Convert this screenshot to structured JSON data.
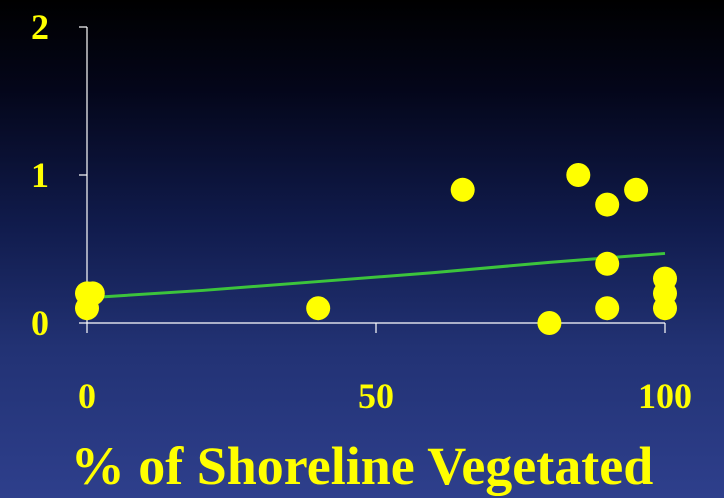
{
  "chart_data": {
    "type": "scatter",
    "title": "",
    "xlabel": "% of Shoreline Vegetated",
    "ylabel": "",
    "xlim": [
      0,
      100
    ],
    "ylim": [
      0,
      2
    ],
    "x_ticks": [
      "0",
      "50",
      "100"
    ],
    "y_ticks": [
      "0",
      "1",
      "2"
    ],
    "points": [
      {
        "x": 0,
        "y": 0.1
      },
      {
        "x": 0,
        "y": 0.2
      },
      {
        "x": 1,
        "y": 0.2
      },
      {
        "x": 40,
        "y": 0.1
      },
      {
        "x": 65,
        "y": 0.9
      },
      {
        "x": 80,
        "y": 0.0
      },
      {
        "x": 85,
        "y": 1.0
      },
      {
        "x": 90,
        "y": 0.8
      },
      {
        "x": 90,
        "y": 0.4
      },
      {
        "x": 90,
        "y": 0.1
      },
      {
        "x": 95,
        "y": 0.9
      },
      {
        "x": 100,
        "y": 0.3
      },
      {
        "x": 100,
        "y": 0.2
      },
      {
        "x": 100,
        "y": 0.1
      }
    ],
    "trendline": {
      "x": [
        0,
        20,
        40,
        60,
        80,
        100
      ],
      "y": [
        0.17,
        0.22,
        0.28,
        0.34,
        0.41,
        0.47
      ]
    },
    "grid": false,
    "colors": {
      "points": "#ffff00",
      "trendline": "#3cc43c",
      "axes": "#ffffff",
      "text": "#ffff00"
    }
  }
}
